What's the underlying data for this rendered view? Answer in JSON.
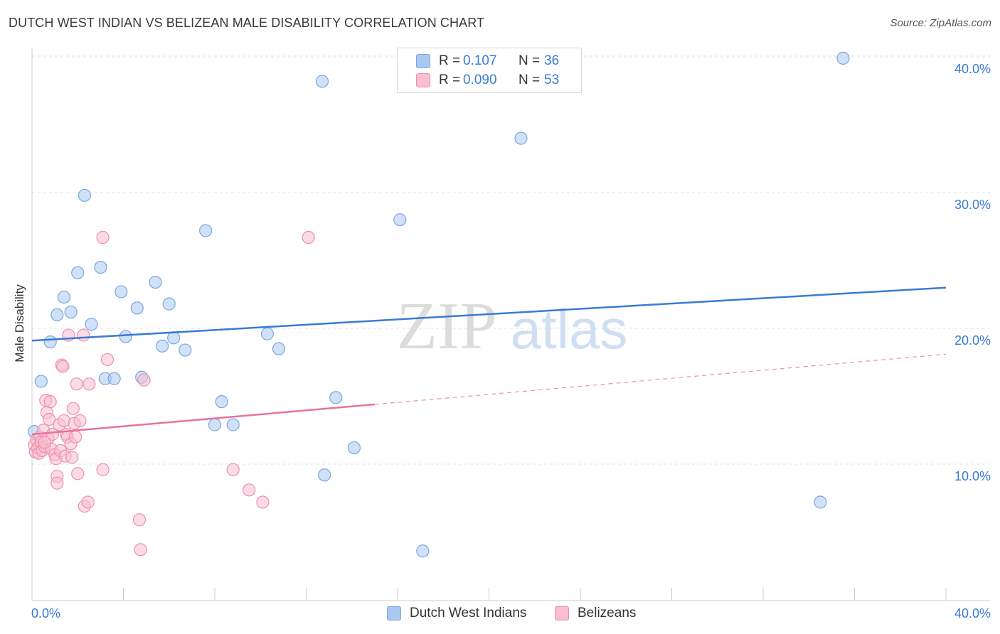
{
  "header": {
    "title": "DUTCH WEST INDIAN VS BELIZEAN MALE DISABILITY CORRELATION CHART",
    "source": "Source: ZipAtlas.com"
  },
  "watermark": {
    "zip": "ZIP",
    "atlas": "atlas"
  },
  "legend": {
    "rows": [
      {
        "r_label": "R =",
        "r_value": "0.107",
        "n_label": "N =",
        "n_value": "36",
        "color": "#a9c8f2",
        "stroke": "#7aa7e0"
      },
      {
        "r_label": "R =",
        "r_value": "0.090",
        "n_label": "N =",
        "n_value": "53",
        "color": "#f8bfd0",
        "stroke": "#ee8fab"
      }
    ]
  },
  "bottom_legend": {
    "items": [
      "Dutch West Indians",
      "Belizeans"
    ]
  },
  "chart_data": {
    "type": "scatter",
    "title": "DUTCH WEST INDIAN VS BELIZEAN MALE DISABILITY CORRELATION CHART",
    "xlabel": "",
    "ylabel": "Male Disability",
    "xlim": [
      0,
      40
    ],
    "ylim": [
      1.5,
      42.5
    ],
    "x_tick_labels": [
      "0.0%",
      "40.0%"
    ],
    "y_ticks": [
      10,
      20,
      30,
      40
    ],
    "y_tick_labels": [
      "10.0%",
      "20.0%",
      "30.0%",
      "40.0%"
    ],
    "grid": true,
    "legend_position": "top-center",
    "series": [
      {
        "name": "Dutch West Indians",
        "color": "#3a7bd5",
        "fill": "#a9c8f2",
        "trend": {
          "x": [
            0,
            40
          ],
          "y": [
            19.1,
            23.0
          ],
          "dashed_from": null
        },
        "points": [
          [
            0.1,
            12.4
          ],
          [
            0.4,
            16.1
          ],
          [
            0.8,
            19.0
          ],
          [
            1.1,
            21.0
          ],
          [
            1.4,
            22.3
          ],
          [
            1.7,
            21.2
          ],
          [
            2.0,
            24.1
          ],
          [
            2.3,
            29.8
          ],
          [
            2.6,
            20.3
          ],
          [
            3.0,
            24.5
          ],
          [
            3.2,
            16.3
          ],
          [
            3.6,
            16.3
          ],
          [
            3.9,
            22.7
          ],
          [
            4.1,
            19.4
          ],
          [
            4.6,
            21.5
          ],
          [
            4.8,
            16.4
          ],
          [
            5.4,
            23.4
          ],
          [
            5.7,
            18.7
          ],
          [
            6.0,
            21.8
          ],
          [
            6.2,
            19.3
          ],
          [
            6.7,
            18.4
          ],
          [
            7.6,
            27.2
          ],
          [
            8.0,
            12.9
          ],
          [
            8.3,
            14.6
          ],
          [
            8.8,
            12.9
          ],
          [
            10.3,
            19.6
          ],
          [
            10.8,
            18.5
          ],
          [
            12.7,
            38.2
          ],
          [
            12.8,
            9.2
          ],
          [
            13.3,
            14.9
          ],
          [
            14.1,
            11.2
          ],
          [
            16.1,
            28.0
          ],
          [
            17.1,
            3.6
          ],
          [
            21.4,
            34.0
          ],
          [
            34.5,
            7.2
          ],
          [
            35.5,
            39.9
          ]
        ]
      },
      {
        "name": "Belizeans",
        "color": "#e8729c",
        "fill": "#f8bfd0",
        "trend": {
          "x": [
            0,
            15.0,
            40
          ],
          "y": [
            12.2,
            14.4,
            18.1
          ],
          "dashed_from": 15.0
        },
        "points": [
          [
            0.1,
            11.4
          ],
          [
            0.15,
            10.9
          ],
          [
            0.2,
            11.8
          ],
          [
            0.25,
            11.2
          ],
          [
            0.3,
            10.8
          ],
          [
            0.35,
            12.0
          ],
          [
            0.4,
            11.6
          ],
          [
            0.45,
            11.0
          ],
          [
            0.5,
            12.5
          ],
          [
            0.55,
            11.3
          ],
          [
            0.6,
            14.7
          ],
          [
            0.65,
            13.8
          ],
          [
            0.7,
            11.9
          ],
          [
            0.75,
            13.3
          ],
          [
            0.8,
            14.6
          ],
          [
            0.85,
            11.1
          ],
          [
            0.9,
            12.2
          ],
          [
            1.0,
            10.7
          ],
          [
            1.05,
            10.4
          ],
          [
            1.1,
            9.1
          ],
          [
            1.1,
            8.6
          ],
          [
            1.2,
            12.9
          ],
          [
            1.25,
            11.0
          ],
          [
            1.3,
            17.3
          ],
          [
            1.35,
            17.2
          ],
          [
            1.4,
            13.2
          ],
          [
            1.45,
            10.6
          ],
          [
            1.5,
            12.2
          ],
          [
            1.55,
            12.0
          ],
          [
            1.6,
            19.5
          ],
          [
            1.7,
            11.5
          ],
          [
            1.75,
            10.5
          ],
          [
            1.8,
            14.1
          ],
          [
            1.85,
            13.0
          ],
          [
            1.9,
            12.0
          ],
          [
            1.95,
            15.9
          ],
          [
            2.0,
            9.3
          ],
          [
            2.1,
            13.2
          ],
          [
            2.25,
            19.5
          ],
          [
            2.3,
            6.9
          ],
          [
            2.5,
            15.9
          ],
          [
            2.45,
            7.2
          ],
          [
            3.1,
            26.7
          ],
          [
            3.1,
            9.6
          ],
          [
            3.3,
            17.7
          ],
          [
            4.7,
            5.9
          ],
          [
            4.75,
            3.7
          ],
          [
            4.9,
            16.2
          ],
          [
            8.8,
            9.6
          ],
          [
            9.5,
            8.1
          ],
          [
            10.1,
            7.2
          ],
          [
            12.1,
            26.7
          ],
          [
            0.55,
            11.6
          ]
        ]
      }
    ]
  }
}
